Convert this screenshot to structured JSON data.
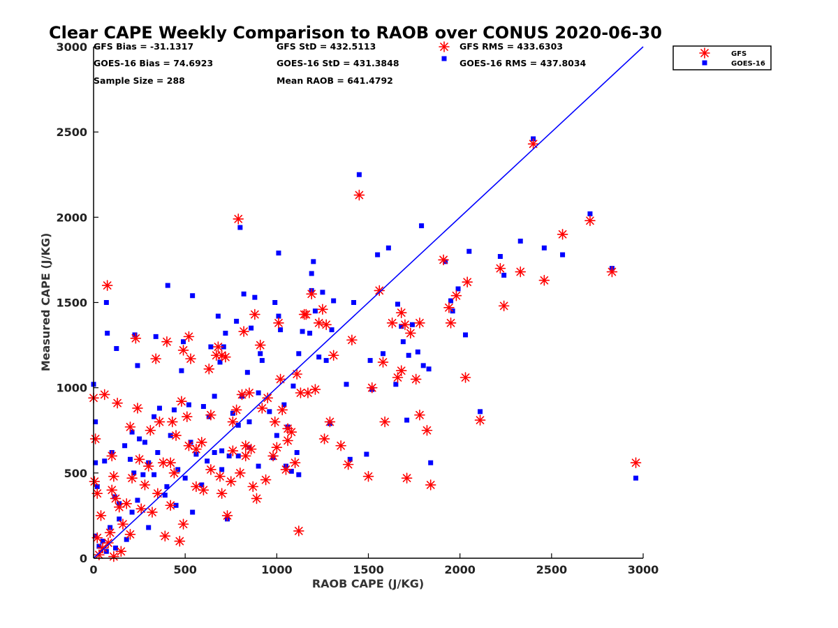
{
  "chart_data": {
    "type": "scatter",
    "title": "Clear CAPE Weekly Comparison to RAOB over CONUS 2020-06-30",
    "xlabel": "RAOB CAPE (J/KG)",
    "ylabel": "Measured CAPE (J/KG)",
    "xlim": [
      0,
      3000
    ],
    "ylim": [
      0,
      3000
    ],
    "xticks": [
      0,
      500,
      1000,
      1500,
      2000,
      2500,
      3000
    ],
    "yticks": [
      0,
      500,
      1000,
      1500,
      2000,
      2500,
      3000
    ],
    "grid": false,
    "legend_position": "top-right",
    "reference_line": {
      "x": [
        0,
        3000
      ],
      "y": [
        0,
        3000
      ],
      "color": "#0000ff"
    },
    "stats": [
      [
        "GFS Bias = -31.1317",
        "GFS StD = 432.5113",
        "GFS RMS = 433.6303"
      ],
      [
        "GOES-16 Bias = 74.6923",
        "GOES-16 StD = 431.3848",
        "GOES-16 RMS = 437.8034"
      ],
      [
        "Sample Size = 288",
        "Mean RAOB = 641.4792",
        ""
      ]
    ],
    "series": [
      {
        "name": "GFS",
        "marker": "asterisk",
        "color": "#ff0000",
        "points": [
          [
            0,
            940
          ],
          [
            10,
            700
          ],
          [
            5,
            450
          ],
          [
            20,
            380
          ],
          [
            40,
            250
          ],
          [
            60,
            960
          ],
          [
            75,
            1600
          ],
          [
            100,
            600
          ],
          [
            130,
            910
          ],
          [
            100,
            400
          ],
          [
            110,
            480
          ],
          [
            120,
            350
          ],
          [
            140,
            300
          ],
          [
            180,
            320
          ],
          [
            200,
            770
          ],
          [
            210,
            470
          ],
          [
            230,
            1290
          ],
          [
            240,
            880
          ],
          [
            250,
            580
          ],
          [
            300,
            540
          ],
          [
            310,
            750
          ],
          [
            340,
            1170
          ],
          [
            360,
            800
          ],
          [
            380,
            560
          ],
          [
            390,
            130
          ],
          [
            400,
            1270
          ],
          [
            420,
            310
          ],
          [
            430,
            800
          ],
          [
            440,
            500
          ],
          [
            470,
            100
          ],
          [
            480,
            920
          ],
          [
            490,
            200
          ],
          [
            490,
            1220
          ],
          [
            510,
            830
          ],
          [
            520,
            1300
          ],
          [
            530,
            1170
          ],
          [
            560,
            420
          ],
          [
            590,
            680
          ],
          [
            600,
            400
          ],
          [
            630,
            1110
          ],
          [
            640,
            840
          ],
          [
            670,
            1190
          ],
          [
            680,
            1240
          ],
          [
            700,
            1190
          ],
          [
            700,
            380
          ],
          [
            720,
            1180
          ],
          [
            730,
            250
          ],
          [
            750,
            450
          ],
          [
            760,
            800
          ],
          [
            780,
            870
          ],
          [
            790,
            1990
          ],
          [
            800,
            500
          ],
          [
            810,
            960
          ],
          [
            820,
            1330
          ],
          [
            830,
            600
          ],
          [
            850,
            970
          ],
          [
            860,
            640
          ],
          [
            880,
            1430
          ],
          [
            890,
            350
          ],
          [
            910,
            1250
          ],
          [
            920,
            880
          ],
          [
            950,
            940
          ],
          [
            980,
            600
          ],
          [
            990,
            800
          ],
          [
            1010,
            1380
          ],
          [
            1020,
            1050
          ],
          [
            1030,
            870
          ],
          [
            1050,
            520
          ],
          [
            1060,
            690
          ],
          [
            1080,
            740
          ],
          [
            1100,
            560
          ],
          [
            1110,
            1080
          ],
          [
            1120,
            160
          ],
          [
            1130,
            970
          ],
          [
            1150,
            1430
          ],
          [
            1160,
            1430
          ],
          [
            1190,
            1550
          ],
          [
            1210,
            990
          ],
          [
            1230,
            1380
          ],
          [
            1250,
            1460
          ],
          [
            1260,
            700
          ],
          [
            1270,
            1370
          ],
          [
            1290,
            800
          ],
          [
            1310,
            1190
          ],
          [
            1350,
            660
          ],
          [
            1390,
            550
          ],
          [
            1410,
            1280
          ],
          [
            1450,
            2130
          ],
          [
            1500,
            480
          ],
          [
            1520,
            1000
          ],
          [
            1560,
            1570
          ],
          [
            1580,
            1150
          ],
          [
            1590,
            800
          ],
          [
            1630,
            1380
          ],
          [
            1660,
            1060
          ],
          [
            1680,
            1440
          ],
          [
            1680,
            1100
          ],
          [
            1700,
            1370
          ],
          [
            1710,
            470
          ],
          [
            1730,
            1320
          ],
          [
            1760,
            1050
          ],
          [
            1780,
            1380
          ],
          [
            1780,
            840
          ],
          [
            1820,
            750
          ],
          [
            1840,
            430
          ],
          [
            1910,
            1750
          ],
          [
            1940,
            1470
          ],
          [
            1950,
            1380
          ],
          [
            1980,
            1540
          ],
          [
            2030,
            1060
          ],
          [
            2040,
            1620
          ],
          [
            2110,
            810
          ],
          [
            2220,
            1700
          ],
          [
            2240,
            1480
          ],
          [
            2330,
            1680
          ],
          [
            2400,
            2430
          ],
          [
            2460,
            1630
          ],
          [
            2560,
            1900
          ],
          [
            2710,
            1980
          ],
          [
            2830,
            1680
          ],
          [
            2960,
            560
          ],
          [
            20,
            120
          ],
          [
            50,
            60
          ],
          [
            80,
            90
          ],
          [
            150,
            40
          ],
          [
            30,
            20
          ],
          [
            110,
            10
          ],
          [
            90,
            150
          ],
          [
            160,
            200
          ],
          [
            200,
            140
          ],
          [
            260,
            290
          ],
          [
            280,
            430
          ],
          [
            320,
            270
          ],
          [
            350,
            380
          ],
          [
            420,
            560
          ],
          [
            450,
            720
          ],
          [
            520,
            660
          ],
          [
            560,
            640
          ],
          [
            640,
            520
          ],
          [
            690,
            480
          ],
          [
            760,
            630
          ],
          [
            830,
            660
          ],
          [
            870,
            420
          ],
          [
            940,
            460
          ],
          [
            1000,
            650
          ],
          [
            1060,
            760
          ],
          [
            1170,
            970
          ]
        ]
      },
      {
        "name": "GOES-16",
        "marker": "square",
        "color": "#0000ff",
        "points": [
          [
            0,
            1020
          ],
          [
            10,
            800
          ],
          [
            10,
            560
          ],
          [
            20,
            420
          ],
          [
            60,
            570
          ],
          [
            70,
            1500
          ],
          [
            75,
            1320
          ],
          [
            100,
            620
          ],
          [
            115,
            360
          ],
          [
            125,
            1230
          ],
          [
            140,
            320
          ],
          [
            170,
            660
          ],
          [
            200,
            580
          ],
          [
            210,
            740
          ],
          [
            220,
            500
          ],
          [
            225,
            1310
          ],
          [
            240,
            1130
          ],
          [
            250,
            700
          ],
          [
            280,
            680
          ],
          [
            300,
            560
          ],
          [
            330,
            830
          ],
          [
            340,
            1300
          ],
          [
            360,
            880
          ],
          [
            390,
            370
          ],
          [
            405,
            1600
          ],
          [
            420,
            720
          ],
          [
            440,
            870
          ],
          [
            460,
            520
          ],
          [
            480,
            1100
          ],
          [
            490,
            1270
          ],
          [
            520,
            900
          ],
          [
            530,
            680
          ],
          [
            540,
            1540
          ],
          [
            560,
            610
          ],
          [
            600,
            890
          ],
          [
            630,
            830
          ],
          [
            640,
            1240
          ],
          [
            660,
            950
          ],
          [
            680,
            1420
          ],
          [
            690,
            1150
          ],
          [
            700,
            630
          ],
          [
            710,
            1240
          ],
          [
            720,
            1320
          ],
          [
            730,
            230
          ],
          [
            760,
            850
          ],
          [
            780,
            1390
          ],
          [
            790,
            600
          ],
          [
            800,
            1940
          ],
          [
            810,
            950
          ],
          [
            820,
            1550
          ],
          [
            840,
            1090
          ],
          [
            850,
            800
          ],
          [
            860,
            1350
          ],
          [
            880,
            1530
          ],
          [
            900,
            970
          ],
          [
            910,
            1200
          ],
          [
            920,
            1160
          ],
          [
            960,
            860
          ],
          [
            990,
            1500
          ],
          [
            1000,
            720
          ],
          [
            1010,
            1420
          ],
          [
            1010,
            1790
          ],
          [
            1020,
            1340
          ],
          [
            1040,
            900
          ],
          [
            1060,
            770
          ],
          [
            1090,
            1010
          ],
          [
            1110,
            620
          ],
          [
            1120,
            1200
          ],
          [
            1140,
            1330
          ],
          [
            1180,
            1320
          ],
          [
            1190,
            1670
          ],
          [
            1190,
            1570
          ],
          [
            1200,
            1740
          ],
          [
            1210,
            1450
          ],
          [
            1230,
            1180
          ],
          [
            1250,
            1560
          ],
          [
            1270,
            1160
          ],
          [
            1290,
            790
          ],
          [
            1300,
            1340
          ],
          [
            1310,
            1510
          ],
          [
            1380,
            1020
          ],
          [
            1400,
            580
          ],
          [
            1420,
            1500
          ],
          [
            1450,
            2250
          ],
          [
            1490,
            610
          ],
          [
            1510,
            1160
          ],
          [
            1520,
            990
          ],
          [
            1550,
            1780
          ],
          [
            1580,
            1200
          ],
          [
            1610,
            1820
          ],
          [
            1650,
            1020
          ],
          [
            1660,
            1490
          ],
          [
            1680,
            1360
          ],
          [
            1690,
            1270
          ],
          [
            1710,
            810
          ],
          [
            1720,
            1190
          ],
          [
            1740,
            1370
          ],
          [
            1770,
            1210
          ],
          [
            1790,
            1950
          ],
          [
            1800,
            1130
          ],
          [
            1830,
            1110
          ],
          [
            1840,
            560
          ],
          [
            1920,
            1740
          ],
          [
            1950,
            1510
          ],
          [
            1960,
            1450
          ],
          [
            1990,
            1580
          ],
          [
            2030,
            1310
          ],
          [
            2050,
            1800
          ],
          [
            2110,
            860
          ],
          [
            2220,
            1770
          ],
          [
            2240,
            1660
          ],
          [
            2330,
            1860
          ],
          [
            2400,
            2460
          ],
          [
            2460,
            1820
          ],
          [
            2560,
            1780
          ],
          [
            2710,
            2020
          ],
          [
            2830,
            1700
          ],
          [
            2960,
            470
          ],
          [
            10,
            130
          ],
          [
            30,
            70
          ],
          [
            50,
            100
          ],
          [
            70,
            40
          ],
          [
            90,
            180
          ],
          [
            120,
            60
          ],
          [
            140,
            230
          ],
          [
            180,
            110
          ],
          [
            210,
            270
          ],
          [
            240,
            340
          ],
          [
            270,
            490
          ],
          [
            300,
            180
          ],
          [
            330,
            490
          ],
          [
            350,
            620
          ],
          [
            400,
            420
          ],
          [
            450,
            310
          ],
          [
            500,
            470
          ],
          [
            540,
            270
          ],
          [
            590,
            430
          ],
          [
            620,
            570
          ],
          [
            660,
            620
          ],
          [
            700,
            520
          ],
          [
            740,
            600
          ],
          [
            790,
            780
          ],
          [
            850,
            650
          ],
          [
            900,
            540
          ],
          [
            980,
            590
          ],
          [
            1050,
            540
          ],
          [
            1080,
            510
          ],
          [
            1120,
            490
          ]
        ]
      }
    ]
  }
}
